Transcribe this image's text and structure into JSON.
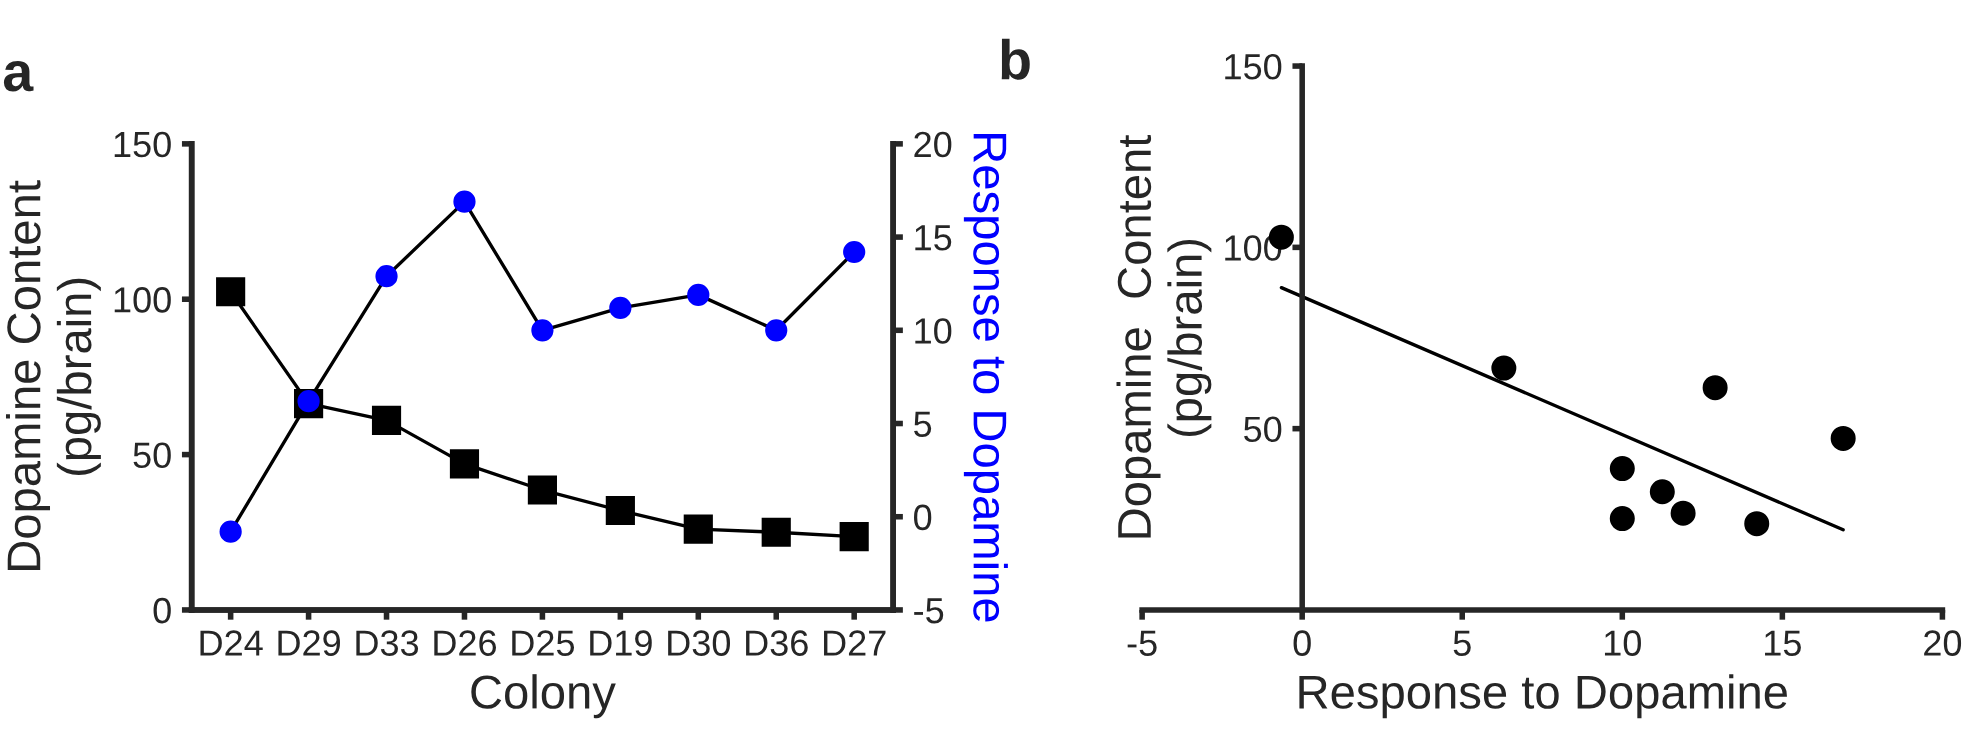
{
  "chart_data": [
    {
      "type": "line",
      "title": "a",
      "xlabel": "Colony",
      "ylabel": "Dopamine Content\n(pg/brain)",
      "y2label": "Response to Dopamine",
      "categories": [
        "D24",
        "D29",
        "D33",
        "D26",
        "D25",
        "D19",
        "D30",
        "D36",
        "D27"
      ],
      "series": [
        {
          "color": "#000000",
          "marker": "square",
          "values": [
            102.4,
            66.4,
            61,
            47,
            38.6,
            32,
            26,
            25,
            23.6
          ]
        },
        {
          "color": "#0000ff",
          "marker": "circle",
          "axis": "y2",
          "values": [
            -0.8,
            6.2,
            12.9,
            16.9,
            10.0,
            11.2,
            11.9,
            10.0,
            14.2
          ]
        }
      ],
      "ylim": [
        0,
        150
      ],
      "yticks": [
        0,
        50,
        100,
        150
      ],
      "y2lim": [
        -5,
        20
      ],
      "y2ticks": [
        -5,
        0,
        5,
        10,
        15,
        20
      ],
      "grid": false,
      "legend": false
    },
    {
      "type": "scatter",
      "title": "b",
      "xlabel": "Response to Dopamine",
      "ylabel": "Dopamine  Content\n(pg/brain)",
      "series": [
        {
          "type": "scatter",
          "color": "#000000",
          "marker": "circle",
          "x": [
            -0.65,
            6.3,
            12.9,
            16.9,
            10.0,
            11.25,
            11.9,
            10.0,
            14.2
          ],
          "values": [
            102.8,
            66.7,
            61.3,
            47.3,
            39,
            32.6,
            26.7,
            25.2,
            23.8
          ]
        },
        {
          "type": "line",
          "color": "#000000",
          "marker": "none",
          "x": [
            -0.65,
            16.9
          ],
          "values": [
            88.9,
            22.1
          ]
        }
      ],
      "xlim": [
        -5,
        20
      ],
      "xticks": [
        -5,
        0,
        5,
        10,
        15,
        20
      ],
      "ylim": [
        0,
        150
      ],
      "yticks": [
        50,
        100,
        150
      ],
      "grid": false,
      "legend": false
    }
  ]
}
